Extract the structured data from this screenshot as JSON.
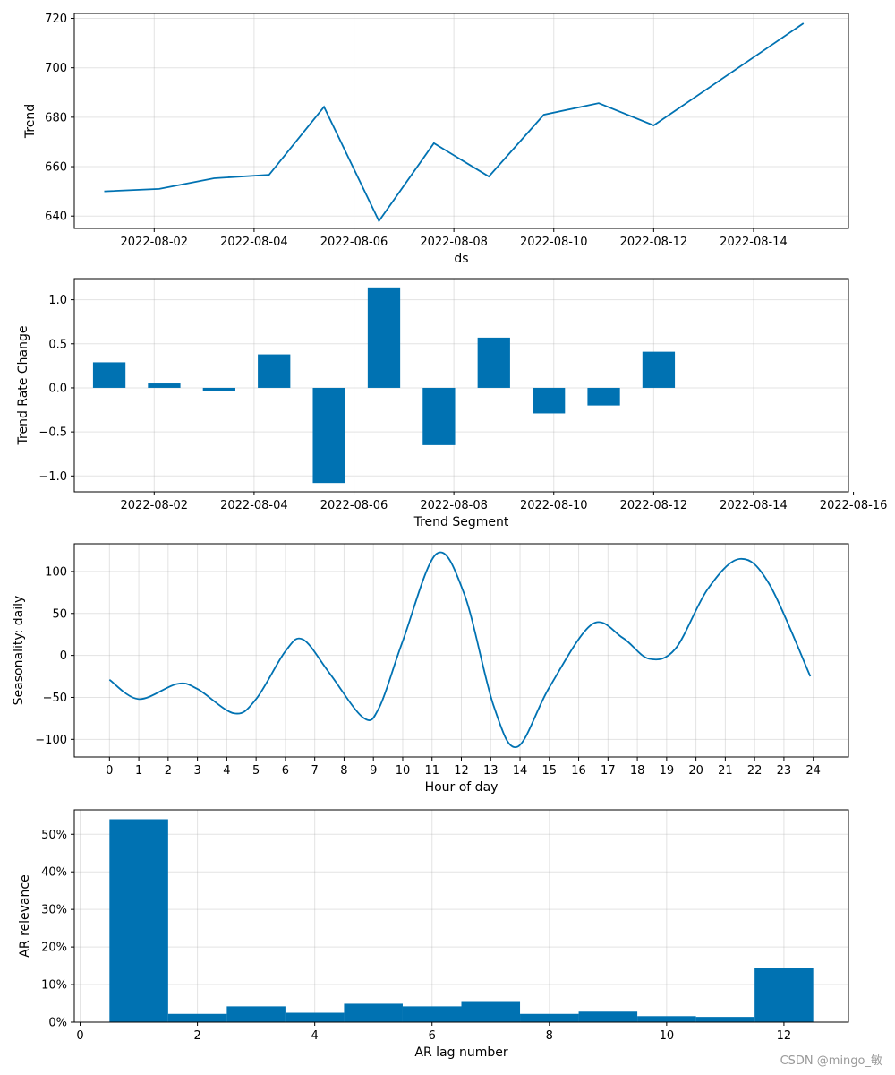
{
  "watermark": "CSDN @mingo_敏",
  "colors": {
    "series": "#0072b2"
  },
  "chart_data": [
    {
      "type": "line",
      "name": "trend",
      "xlabel": "ds",
      "ylabel": "Trend",
      "xlim": [
        -0.6,
        14.9
      ],
      "ylim": [
        635,
        722
      ],
      "xticks": [
        {
          "v": 1,
          "label": "2022-08-02"
        },
        {
          "v": 3,
          "label": "2022-08-04"
        },
        {
          "v": 5,
          "label": "2022-08-06"
        },
        {
          "v": 7,
          "label": "2022-08-08"
        },
        {
          "v": 9,
          "label": "2022-08-10"
        },
        {
          "v": 11,
          "label": "2022-08-12"
        },
        {
          "v": 13,
          "label": "2022-08-14"
        }
      ],
      "yticks": [
        {
          "v": 640,
          "label": "640"
        },
        {
          "v": 660,
          "label": "660"
        },
        {
          "v": 680,
          "label": "680"
        },
        {
          "v": 700,
          "label": "700"
        },
        {
          "v": 720,
          "label": "720"
        }
      ],
      "x": [
        0,
        1.1,
        2.2,
        3.3,
        4.4,
        5.5,
        6.6,
        7.7,
        8.8,
        9.9,
        11,
        14
      ],
      "values": [
        650,
        651,
        655.3,
        656.7,
        684.2,
        638,
        669.5,
        656,
        681,
        685.7,
        676.7,
        718
      ]
    },
    {
      "type": "bar",
      "name": "trend-rate-change",
      "xlabel": "Trend Segment",
      "ylabel": "Trend Rate Change",
      "xlim": [
        -0.6,
        14.9
      ],
      "ylim": [
        -1.18,
        1.24
      ],
      "bar_width": 0.65,
      "xticks": [
        {
          "v": 1,
          "label": "2022-08-02"
        },
        {
          "v": 3,
          "label": "2022-08-04"
        },
        {
          "v": 5,
          "label": "2022-08-06"
        },
        {
          "v": 7,
          "label": "2022-08-08"
        },
        {
          "v": 9,
          "label": "2022-08-10"
        },
        {
          "v": 11,
          "label": "2022-08-12"
        },
        {
          "v": 13,
          "label": "2022-08-14"
        },
        {
          "v": 15,
          "label": "2022-08-16"
        }
      ],
      "yticks": [
        {
          "v": -1.0,
          "label": "−1.0"
        },
        {
          "v": -0.5,
          "label": "−0.5"
        },
        {
          "v": 0.0,
          "label": "0.0"
        },
        {
          "v": 0.5,
          "label": "0.5"
        },
        {
          "v": 1.0,
          "label": "1.0"
        }
      ],
      "x": [
        0.1,
        1.2,
        2.3,
        3.4,
        4.5,
        5.6,
        6.7,
        7.8,
        8.9,
        10.0,
        11.1
      ],
      "values": [
        0.29,
        0.05,
        -0.04,
        0.38,
        -1.08,
        1.14,
        -0.65,
        0.57,
        -0.29,
        -0.2,
        0.41
      ]
    },
    {
      "type": "line",
      "name": "seasonality-daily",
      "xlabel": "Hour of day",
      "ylabel": "Seasonality: daily",
      "xlim": [
        -1.2,
        25.2
      ],
      "ylim": [
        -121,
        133
      ],
      "xticks": [
        {
          "v": 0,
          "label": "0"
        },
        {
          "v": 1,
          "label": "1"
        },
        {
          "v": 2,
          "label": "2"
        },
        {
          "v": 3,
          "label": "3"
        },
        {
          "v": 4,
          "label": "4"
        },
        {
          "v": 5,
          "label": "5"
        },
        {
          "v": 6,
          "label": "6"
        },
        {
          "v": 7,
          "label": "7"
        },
        {
          "v": 8,
          "label": "8"
        },
        {
          "v": 9,
          "label": "9"
        },
        {
          "v": 10,
          "label": "10"
        },
        {
          "v": 11,
          "label": "11"
        },
        {
          "v": 12,
          "label": "12"
        },
        {
          "v": 13,
          "label": "13"
        },
        {
          "v": 14,
          "label": "14"
        },
        {
          "v": 15,
          "label": "15"
        },
        {
          "v": 16,
          "label": "16"
        },
        {
          "v": 17,
          "label": "17"
        },
        {
          "v": 18,
          "label": "18"
        },
        {
          "v": 19,
          "label": "19"
        },
        {
          "v": 20,
          "label": "20"
        },
        {
          "v": 21,
          "label": "21"
        },
        {
          "v": 22,
          "label": "22"
        },
        {
          "v": 23,
          "label": "23"
        },
        {
          "v": 24,
          "label": "24"
        }
      ],
      "yticks": [
        {
          "v": -100,
          "label": "−100"
        },
        {
          "v": -50,
          "label": "−50"
        },
        {
          "v": 0,
          "label": "0"
        },
        {
          "v": 50,
          "label": "50"
        },
        {
          "v": 100,
          "label": "100"
        }
      ],
      "x": [
        0,
        1,
        2.3,
        3,
        4.25,
        5,
        6,
        6.6,
        7.5,
        8.65,
        9.2,
        10,
        11.15,
        12.1,
        13.1,
        13.9,
        15,
        16.45,
        17.5,
        18.4,
        19.3,
        20.4,
        21.5,
        22.5,
        23.9
      ],
      "values": [
        -29,
        -52,
        -34,
        -40,
        -69,
        -52,
        5,
        19,
        -21,
        -74,
        -62,
        17,
        121,
        73,
        -60,
        -109,
        -38,
        37,
        21,
        -4,
        8,
        79,
        115,
        85,
        -25
      ]
    },
    {
      "type": "bar",
      "name": "ar-relevance",
      "xlabel": "AR lag number",
      "ylabel": "AR relevance",
      "xlim": [
        -0.1,
        13.1
      ],
      "ylim": [
        0,
        0.565
      ],
      "bar_width": 1.0,
      "xticks": [
        {
          "v": 0,
          "label": "0"
        },
        {
          "v": 2,
          "label": "2"
        },
        {
          "v": 4,
          "label": "4"
        },
        {
          "v": 6,
          "label": "6"
        },
        {
          "v": 8,
          "label": "8"
        },
        {
          "v": 10,
          "label": "10"
        },
        {
          "v": 12,
          "label": "12"
        }
      ],
      "yticks": [
        {
          "v": 0,
          "label": "0%"
        },
        {
          "v": 0.1,
          "label": "10%"
        },
        {
          "v": 0.2,
          "label": "20%"
        },
        {
          "v": 0.3,
          "label": "30%"
        },
        {
          "v": 0.4,
          "label": "40%"
        },
        {
          "v": 0.5,
          "label": "50%"
        }
      ],
      "x": [
        1,
        2,
        3,
        4,
        5,
        6,
        7,
        8,
        9,
        10,
        11,
        12
      ],
      "values": [
        0.54,
        0.022,
        0.042,
        0.025,
        0.049,
        0.042,
        0.056,
        0.022,
        0.028,
        0.016,
        0.014,
        0.145
      ]
    }
  ]
}
